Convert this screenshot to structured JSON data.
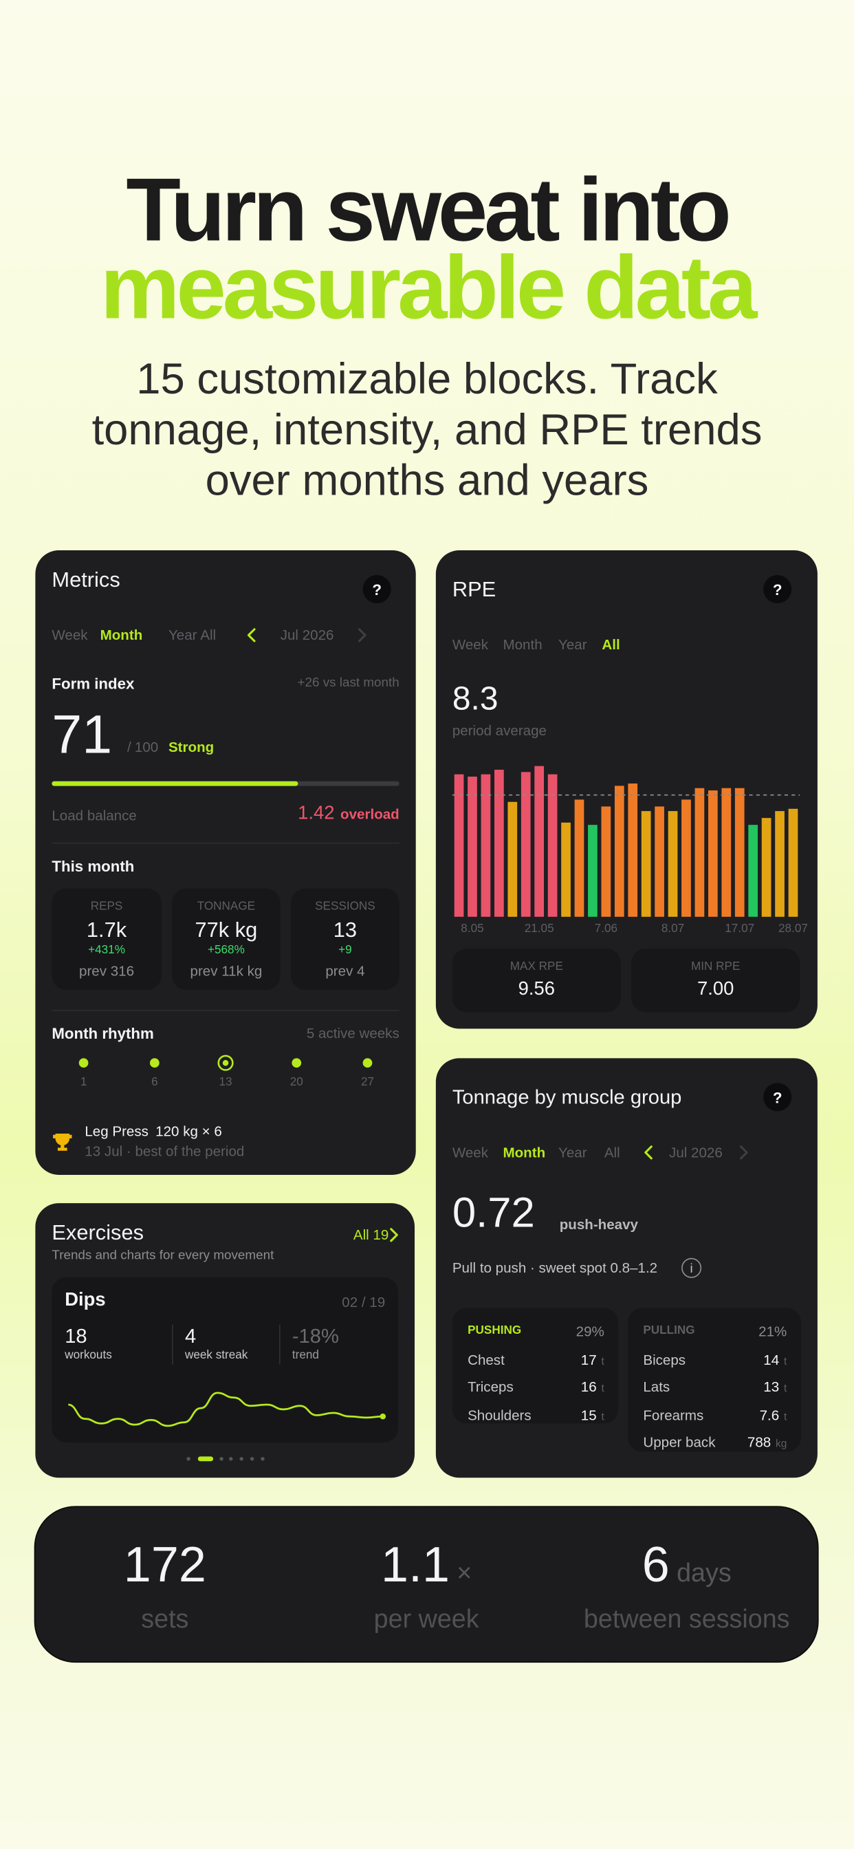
{
  "header": {
    "title_line1": "Turn sweat into",
    "title_line2": "measurable data",
    "subtitle_lines": [
      "15 customizable blocks. Track",
      "tonnage, intensity, and RPE trends",
      "over months and years"
    ]
  },
  "metrics": {
    "title": "Metrics",
    "help": "?",
    "periods": [
      "Week",
      "Month",
      "Year",
      "All"
    ],
    "active_period": 1,
    "date": "Jul 2026",
    "form_index": {
      "label": "Form index",
      "delta": "+26 vs last month",
      "value": 71,
      "separator": "/",
      "max": 100,
      "rating": "Strong"
    },
    "load_balance": {
      "label": "Load balance",
      "value": 1.42,
      "status": "overload"
    },
    "this_month": {
      "title": "This month",
      "stats": [
        {
          "label": "REPS",
          "value": "1.7k",
          "change": "+431%",
          "prev": "prev 316"
        },
        {
          "label": "TONNAGE",
          "value": "77k kg",
          "change": "+568%",
          "prev": "prev 11k kg"
        },
        {
          "label": "SESSIONS",
          "value": 13,
          "change": "+9",
          "prev": "prev 4"
        }
      ]
    },
    "rhythm": {
      "title": "Month rhythm",
      "summary": "5 active weeks",
      "days": [
        1,
        6,
        13,
        20,
        27
      ],
      "current": 2
    },
    "best": {
      "exercise": "Leg Press",
      "detail": "120 kg × 6",
      "note": "13 Jul · best of the period"
    }
  },
  "rpe": {
    "help": "?",
    "periods": [
      "Week",
      "Month",
      "Year",
      "All"
    ],
    "active_period": 3
  },
  "chart_data": {
    "type": "bar",
    "title": "RPE",
    "average": 8.3,
    "average_label": "period average",
    "categories": [
      null,
      "8.05",
      null,
      null,
      null,
      null,
      "21.05",
      null,
      null,
      null,
      null,
      "7.06",
      null,
      null,
      null,
      null,
      "8.07",
      null,
      null,
      null,
      null,
      "17.07",
      null,
      null,
      null,
      "28.07"
    ],
    "values": [
      9.2,
      9.1,
      9.2,
      9.4,
      8.0,
      9.3,
      9.56,
      9.2,
      7.1,
      8.1,
      7.0,
      7.8,
      8.7,
      8.8,
      7.6,
      7.8,
      7.6,
      8.1,
      8.6,
      8.5,
      8.6,
      8.6,
      7.0,
      7.3,
      7.6,
      7.7
    ],
    "colors": [
      "#e9546b",
      "#e9546b",
      "#e9546b",
      "#e9546b",
      "#e3a414",
      "#e9546b",
      "#e9546b",
      "#e9546b",
      "#e3a414",
      "#f07b26",
      "#22c55e",
      "#f07b26",
      "#f07b26",
      "#f07b26",
      "#e3a414",
      "#f07b26",
      "#e3a414",
      "#f07b26",
      "#f07b26",
      "#f07b26",
      "#f07b26",
      "#f07b26",
      "#22c55e",
      "#e3a414",
      "#e3a414",
      "#e3a414"
    ],
    "ylim": [
      3,
      10
    ],
    "max_label": "MAX RPE",
    "max": 9.56,
    "min_label": "MIN RPE",
    "min": "7.00"
  },
  "exercises": {
    "title": "Exercises",
    "all": "All 19",
    "subtitle": "Trends and charts for every movement",
    "card": {
      "name": "Dips",
      "position": "02 / 19",
      "stats": [
        {
          "value": 18,
          "label": "workouts"
        },
        {
          "value": 4,
          "label": "week streak"
        },
        {
          "value": "-18%",
          "label": "trend"
        }
      ],
      "sparkline": {
        "values": [
          23,
          11,
          7,
          11,
          6,
          10,
          5,
          8,
          20,
          33,
          29,
          22,
          23,
          19,
          22,
          14,
          16,
          13,
          12,
          13
        ],
        "ylim": [
          0,
          40
        ]
      }
    }
  },
  "tonnage": {
    "title": "Tonnage by muscle group",
    "help": "?",
    "periods": [
      "Week",
      "Month",
      "Year",
      "All"
    ],
    "active_period": 1,
    "date": "Jul 2026",
    "ratio": 0.72,
    "ratio_label": "push-heavy",
    "note": "Pull to push · sweet spot 0.8–1.2",
    "info": "i",
    "groups": [
      {
        "name": "PUSHING",
        "share": "29%",
        "items": [
          {
            "name": "Chest",
            "value": 17,
            "unit": "t"
          },
          {
            "name": "Triceps",
            "value": 16,
            "unit": "t"
          },
          {
            "name": "Shoulders",
            "value": 15,
            "unit": "t"
          }
        ]
      },
      {
        "name": "PULLING",
        "share": "21%",
        "items": [
          {
            "name": "Biceps",
            "value": 14,
            "unit": "t"
          },
          {
            "name": "Lats",
            "value": 13,
            "unit": "t"
          },
          {
            "name": "Forearms",
            "value": 7.6,
            "unit": "t"
          },
          {
            "name": "Upper back",
            "value": 788,
            "unit": "kg"
          }
        ]
      }
    ]
  },
  "summary": {
    "stats": [
      {
        "value": 172,
        "label": "sets"
      },
      {
        "value": 1.1,
        "unit": "×",
        "label": "per week"
      },
      {
        "value": 6,
        "unit": "days",
        "label": "between sessions"
      }
    ]
  }
}
